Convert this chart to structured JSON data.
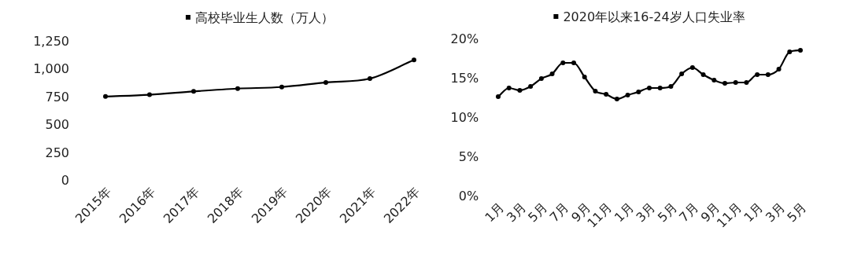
{
  "chart_data": [
    {
      "type": "line",
      "categories": [
        "2015年",
        "2016年",
        "2017年",
        "2018年",
        "2019年",
        "2020年",
        "2021年",
        "2022年"
      ],
      "series": [
        {
          "name": "高校毕业生人数（万人）",
          "color": "#000000",
          "values": [
            750,
            766,
            796,
            821,
            835,
            876,
            911,
            1078
          ]
        }
      ],
      "ylim": [
        0,
        1250
      ],
      "yticks": [
        0,
        {
          "value": 250,
          "label": "250"
        },
        {
          "value": 500,
          "label": "500"
        },
        {
          "value": 750,
          "label": "750"
        },
        {
          "value": 1000,
          "label": "1,000"
        },
        {
          "value": 1250,
          "label": "1,250"
        }
      ],
      "grid": false,
      "legend": "top",
      "marker": "circle",
      "line_style": "solid"
    },
    {
      "type": "line",
      "categories": [
        "1月",
        null,
        "3月",
        null,
        "5月",
        null,
        "7月",
        null,
        "9月",
        null,
        "11月",
        null,
        "1月",
        null,
        "3月",
        null,
        "5月",
        null,
        "7月",
        null,
        "9月",
        null,
        "11月",
        null,
        "1月",
        null,
        "3月",
        null,
        "5月"
      ],
      "series": [
        {
          "name": "2020年以来16-24岁人口失业率",
          "color": "#000000",
          "values": [
            12.6,
            13.7,
            13.4,
            13.9,
            14.9,
            15.5,
            16.9,
            16.9,
            15.1,
            13.3,
            12.9,
            12.3,
            12.8,
            13.2,
            13.7,
            13.7,
            13.9,
            15.5,
            16.3,
            15.4,
            14.7,
            14.3,
            14.4,
            14.4,
            15.4,
            15.4,
            16.1,
            18.3,
            18.5
          ]
        }
      ],
      "ylim": [
        0,
        20
      ],
      "yticks": [
        {
          "value": 0,
          "label": "0%"
        },
        {
          "value": 5,
          "label": "5%"
        },
        {
          "value": 10,
          "label": "10%"
        },
        {
          "value": 15,
          "label": "15%"
        },
        {
          "value": 20,
          "label": "20%"
        }
      ],
      "grid": false,
      "legend": "top",
      "marker": "circle",
      "line_style": "solid"
    }
  ]
}
